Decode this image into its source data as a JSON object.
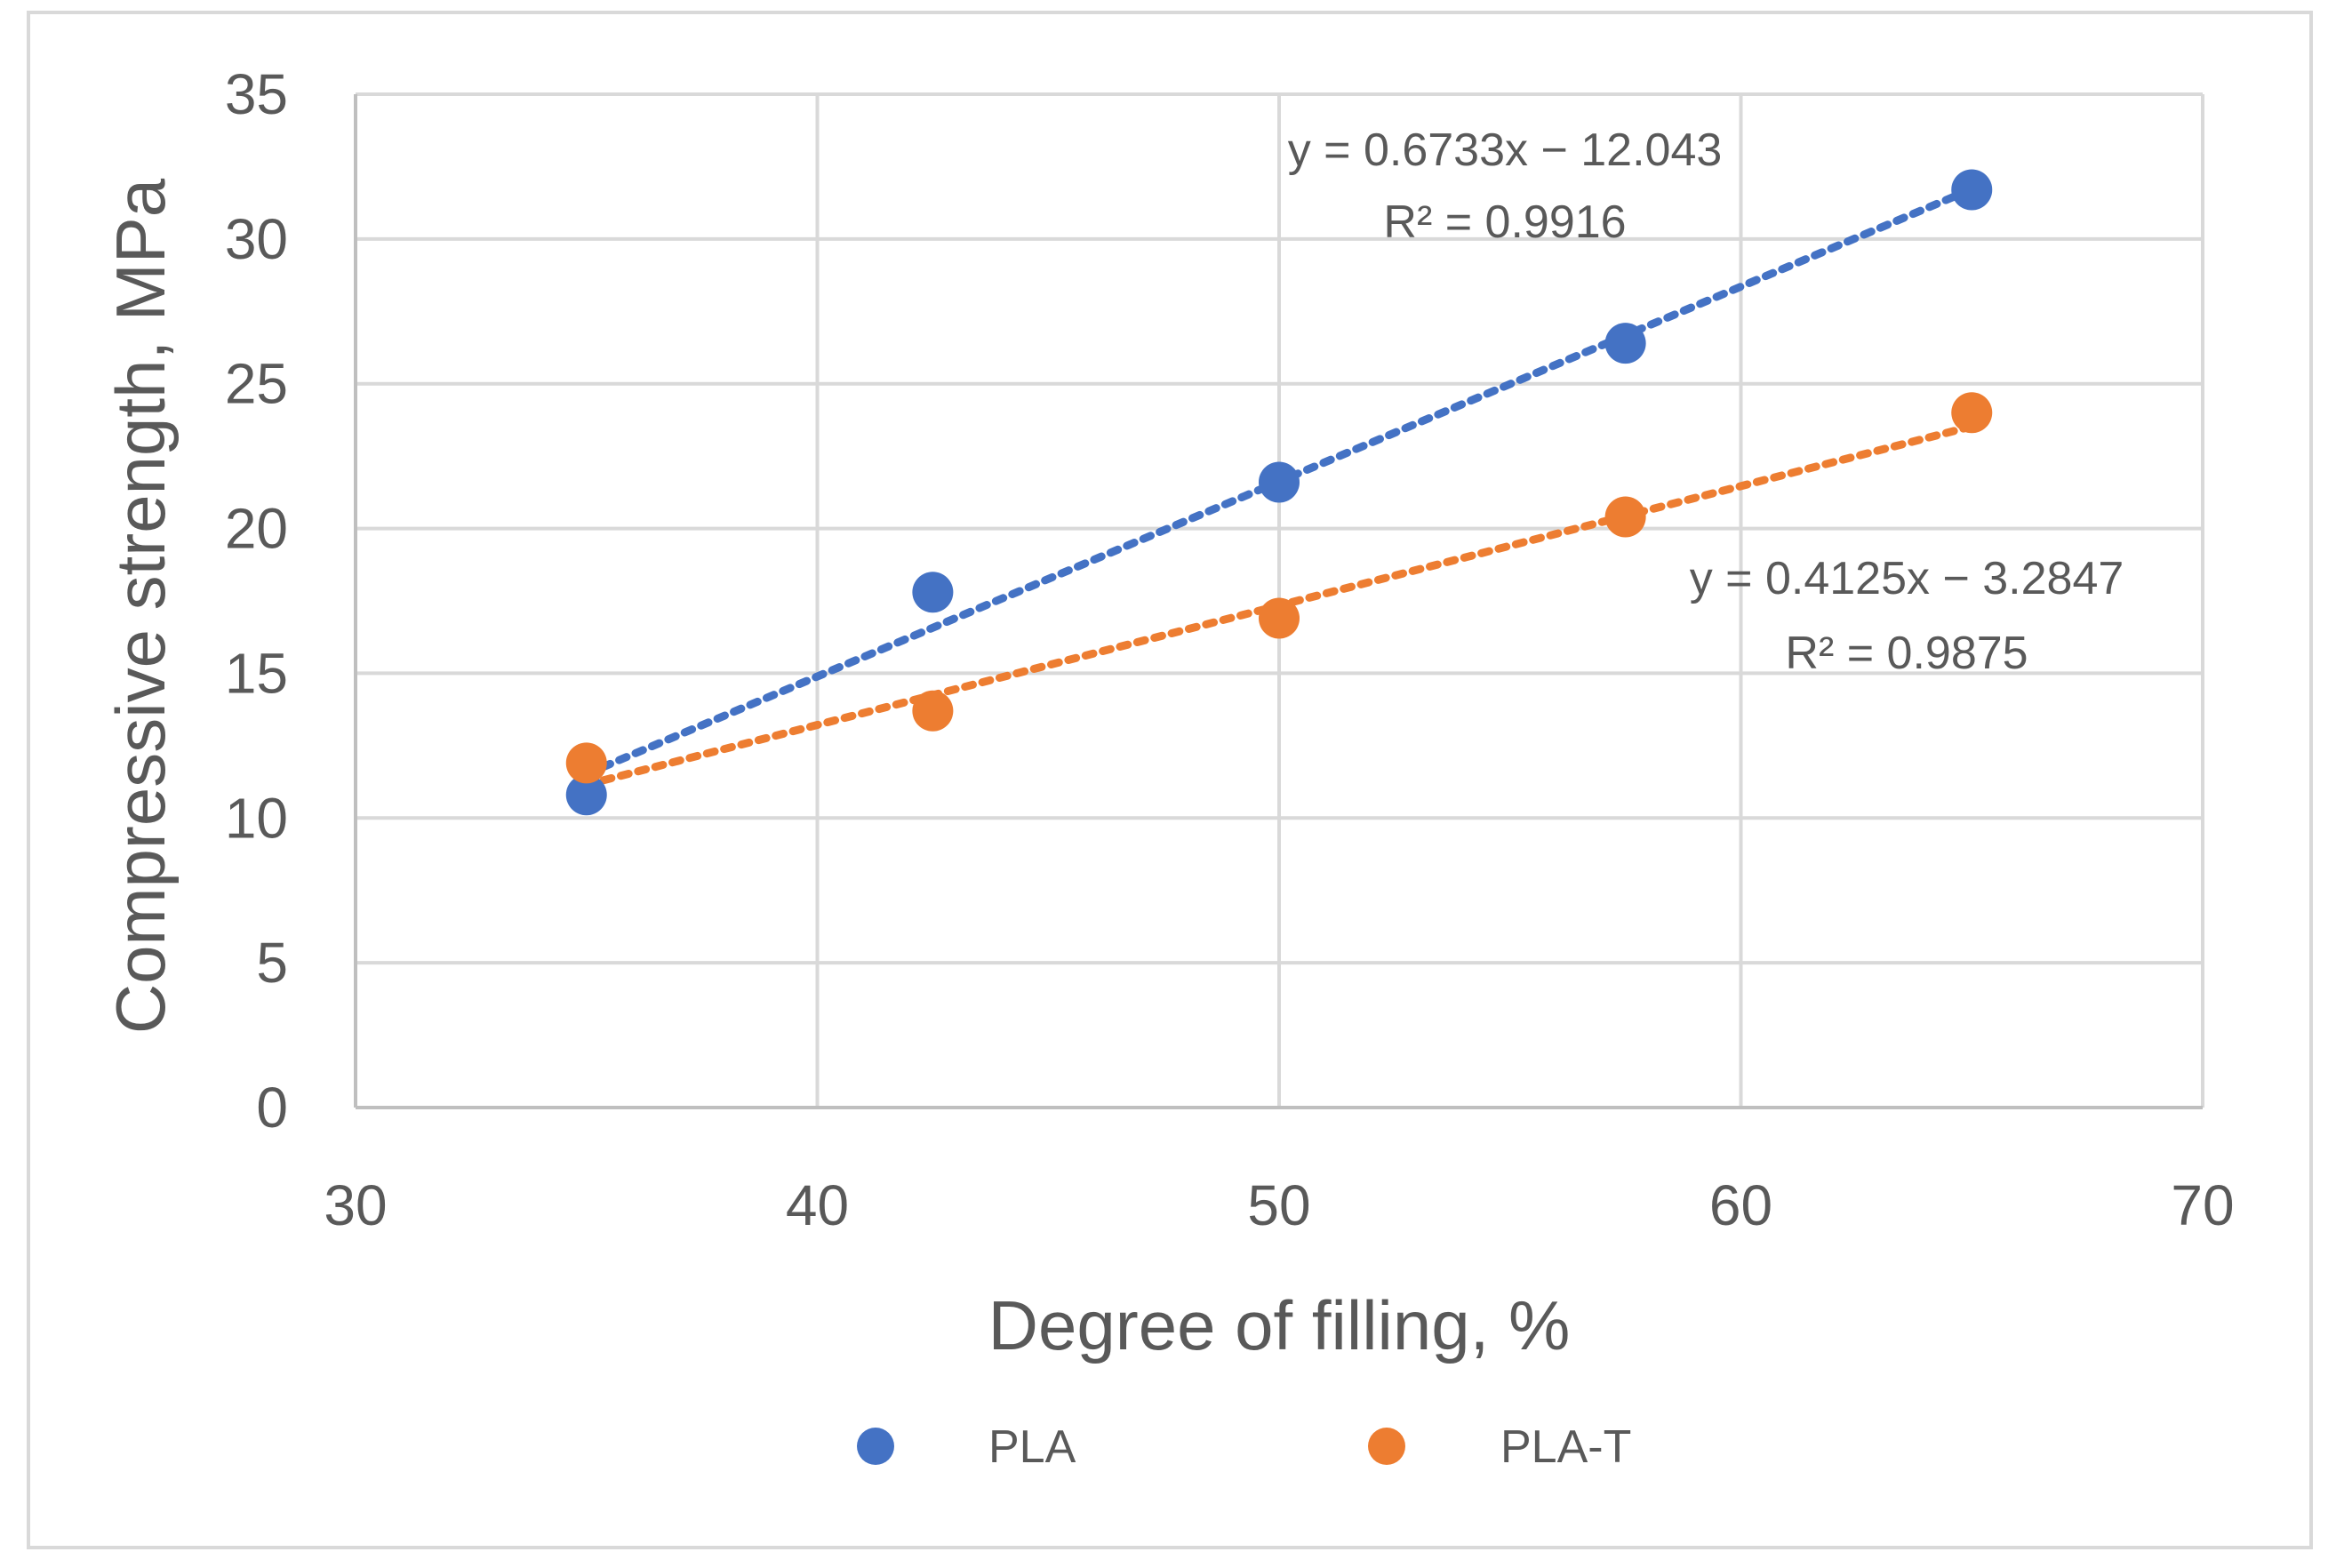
{
  "chart_data": {
    "type": "scatter",
    "title": "",
    "xlabel": "Degree of filling, %",
    "ylabel": "Compressive strength, MPa",
    "xlim": [
      30,
      70
    ],
    "ylim": [
      0,
      35
    ],
    "xticks": [
      30,
      40,
      50,
      60,
      70
    ],
    "yticks": [
      0,
      5,
      10,
      15,
      20,
      25,
      30,
      35
    ],
    "grid": true,
    "legend_position": "bottom",
    "series": [
      {
        "name": "PLA",
        "color": "#4472c4",
        "x": [
          35,
          42.5,
          50,
          57.5,
          65
        ],
        "y": [
          10.8,
          17.8,
          21.6,
          26.4,
          31.7
        ],
        "trendline": {
          "slope": 0.6733,
          "intercept": -12.043,
          "equation": "y = 0.6733x − 12.043",
          "r2": "R² = 0.9916"
        }
      },
      {
        "name": "PLA-T",
        "color": "#ed7d31",
        "x": [
          35,
          42.5,
          50,
          57.5,
          65
        ],
        "y": [
          11.9,
          13.7,
          16.9,
          20.4,
          24.0
        ],
        "trendline": {
          "slope": 0.4125,
          "intercept": -3.2847,
          "equation": "y = 0.4125x − 3.2847",
          "r2": "R² = 0.9875"
        }
      }
    ]
  }
}
